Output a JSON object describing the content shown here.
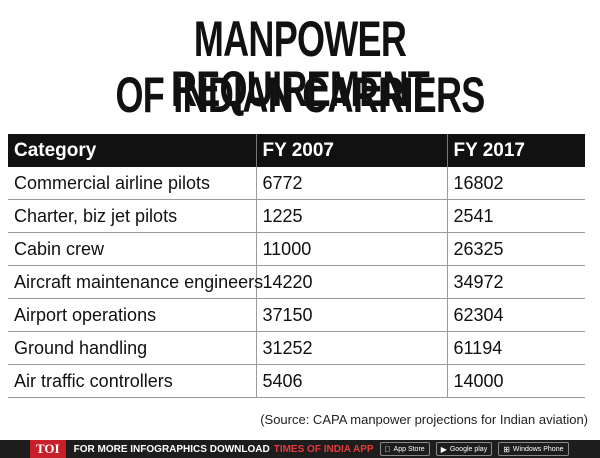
{
  "title_line1": "MANPOWER REQUIREMENT",
  "title_line2": "OF INDIAN CARRIERS",
  "source": "(Source: CAPA manpower projections for Indian aviation)",
  "footer": {
    "toi": "TOI",
    "promo": "FOR MORE  INFOGRAPHICS DOWNLOAD",
    "brand": "TIMES OF INDIA  APP",
    "stores": [
      {
        "icon": "apple-icon",
        "glyph": "",
        "label": "App Store"
      },
      {
        "icon": "google-play-icon",
        "glyph": "▶",
        "label": "Google play"
      },
      {
        "icon": "windows-icon",
        "glyph": "⊞",
        "label": "Windows Phone"
      }
    ]
  },
  "chart_data": {
    "type": "table",
    "columns": [
      "Category",
      "FY 2007",
      "FY 2017"
    ],
    "rows": [
      [
        "Commercial airline pilots",
        "6772",
        "16802"
      ],
      [
        "Charter, biz jet pilots",
        "1225",
        "2541"
      ],
      [
        "Cabin crew",
        "11000",
        "26325"
      ],
      [
        "Aircraft maintenance engineers",
        "14220",
        "34972"
      ],
      [
        "Airport operations",
        "37150",
        "62304"
      ],
      [
        "Ground handling",
        "31252",
        "61194"
      ],
      [
        "Air traffic controllers",
        "5406",
        "14000"
      ]
    ]
  }
}
